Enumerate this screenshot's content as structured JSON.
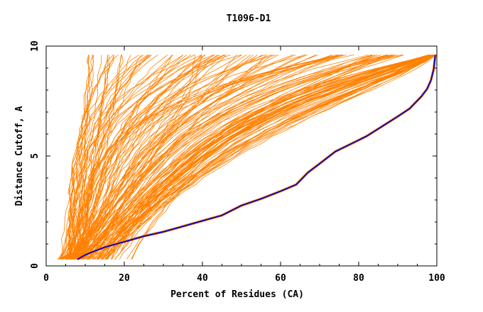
{
  "chart_data": {
    "type": "line",
    "title": "T1096-D1",
    "xlabel": "Percent of Residues (CA)",
    "ylabel": "Distance Cutoff, A",
    "xlim": [
      0,
      100
    ],
    "ylim": [
      0,
      10
    ],
    "x_ticks": [
      0,
      20,
      40,
      60,
      80,
      100
    ],
    "x_tick_labels": [
      "0",
      "20",
      "40",
      "60",
      "80",
      "100"
    ],
    "y_ticks": [
      0,
      5,
      10
    ],
    "y_tick_labels": [
      "0",
      "5",
      "10"
    ],
    "grid": false,
    "colors": {
      "background_series": "#ff8000",
      "highlight_series": "#0000cc",
      "highlight_outline": "#ff8000",
      "axes": "#000000"
    },
    "highlight_series": {
      "x": [
        8,
        10,
        12,
        15,
        18,
        21,
        25,
        30,
        35,
        40,
        45,
        50,
        55,
        60,
        64,
        67,
        70,
        74,
        78,
        82,
        86,
        90,
        93,
        96,
        97.5,
        98.5,
        99.2,
        99.6
      ],
      "y": [
        0.3,
        0.5,
        0.65,
        0.85,
        1.0,
        1.15,
        1.35,
        1.55,
        1.8,
        2.05,
        2.3,
        2.75,
        3.05,
        3.4,
        3.7,
        4.25,
        4.65,
        5.2,
        5.55,
        5.9,
        6.35,
        6.8,
        7.15,
        7.7,
        8.05,
        8.45,
        8.95,
        9.6
      ]
    },
    "background_series_groups": [
      {
        "count": 45,
        "x_start": [
          3,
          9
        ],
        "x_mid": [
          6,
          24
        ],
        "x_end": [
          10,
          52
        ],
        "curve": 0.4
      },
      {
        "count": 45,
        "x_start": [
          3,
          9
        ],
        "x_mid": [
          14,
          44
        ],
        "x_end": [
          38,
          80
        ],
        "curve": 0.55
      },
      {
        "count": 20,
        "x_start": [
          5,
          11
        ],
        "x_mid": [
          38,
          62
        ],
        "x_end": [
          82,
          92
        ],
        "curve": 0.85
      },
      {
        "count": 40,
        "x_start": [
          9,
          16
        ],
        "x_mid": [
          60,
          90
        ],
        "x_end": [
          98,
          100
        ],
        "curve": 1.4
      },
      {
        "count": 12,
        "x_start": [
          14,
          22
        ],
        "x_mid": [
          85,
          96
        ],
        "x_end": [
          99,
          100
        ],
        "curve": 2.8
      }
    ]
  }
}
